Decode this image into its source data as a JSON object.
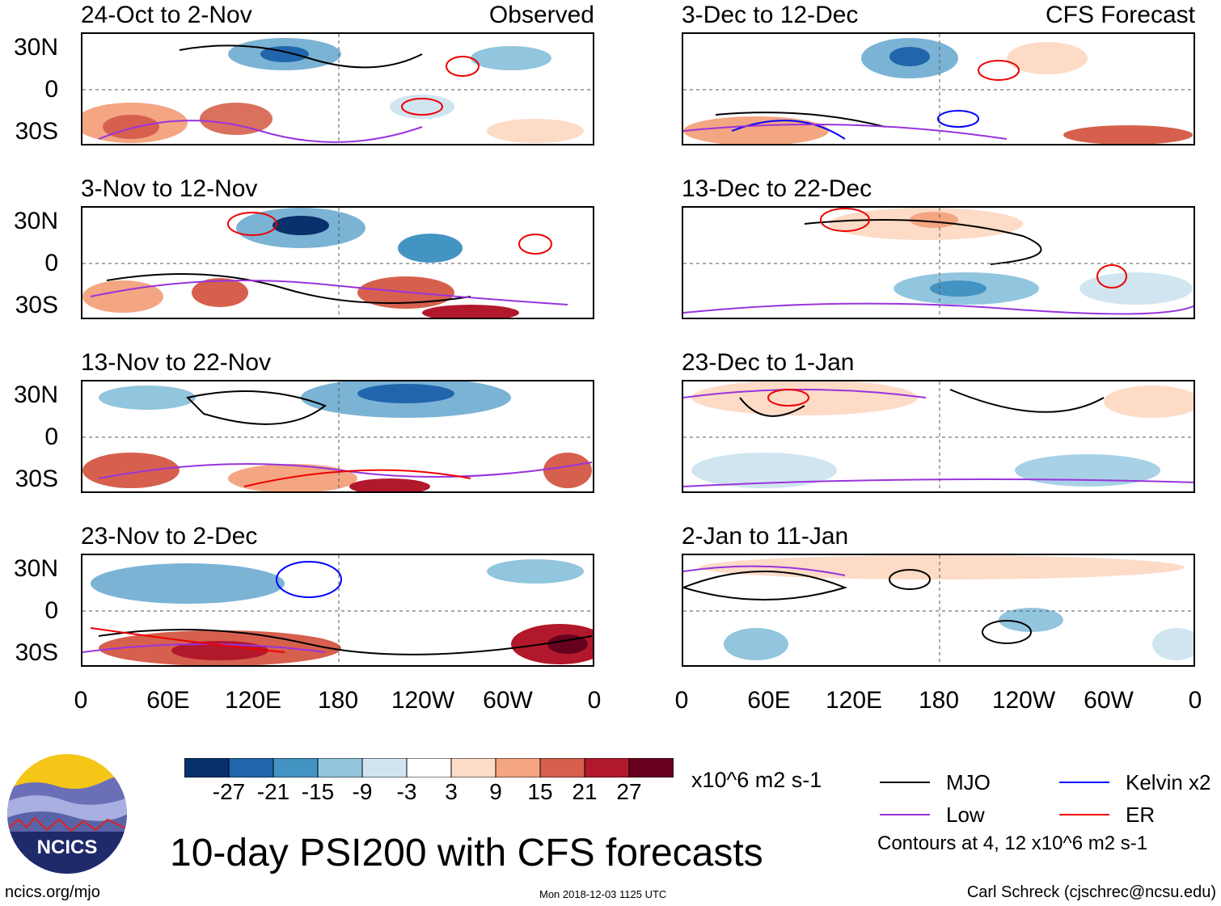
{
  "left_column_tag": "Observed",
  "right_column_tag": "CFS Forecast",
  "panels_left": [
    {
      "title": "24-Oct to 2-Nov"
    },
    {
      "title": "3-Nov to 12-Nov"
    },
    {
      "title": "13-Nov to 22-Nov"
    },
    {
      "title": "23-Nov to 2-Dec"
    }
  ],
  "panels_right": [
    {
      "title": "3-Dec to 12-Dec"
    },
    {
      "title": "13-Dec to 22-Dec"
    },
    {
      "title": "23-Dec to 1-Jan"
    },
    {
      "title": "2-Jan to 11-Jan"
    }
  ],
  "lat_labels": [
    "30N",
    "0",
    "30S"
  ],
  "lon_labels": [
    "0",
    "60E",
    "120E",
    "180",
    "120W",
    "60W",
    "0"
  ],
  "colorbar": {
    "tick_labels": [
      "-27",
      "-21",
      "-15",
      "-9",
      "-3",
      "3",
      "9",
      "15",
      "21",
      "27"
    ],
    "colors": [
      "#08306b",
      "#2166ac",
      "#4393c3",
      "#92c5de",
      "#d1e5f0",
      "#ffffff",
      "#fddbc7",
      "#f4a582",
      "#d6604d",
      "#b2182b",
      "#67001f"
    ],
    "units": "x10^6 m2 s-1"
  },
  "legend": {
    "items": [
      {
        "label": "MJO",
        "color": "#000000"
      },
      {
        "label": "Kelvin x2",
        "color": "#0000ff"
      },
      {
        "label": "Low",
        "color": "#9933dd"
      },
      {
        "label": "ER",
        "color": "#ee0000"
      }
    ],
    "contour_note": "Contours at 4, 12 x10^6 m2 s-1"
  },
  "main_title": "10-day PSI200 with CFS forecasts",
  "logo_text": "NCICS",
  "footer": {
    "left": "ncics.org/mjo",
    "center": "Mon 2018-12-03 1125 UTC",
    "right": "Carl Schreck (cjschrec@ncsu.edu)"
  }
}
